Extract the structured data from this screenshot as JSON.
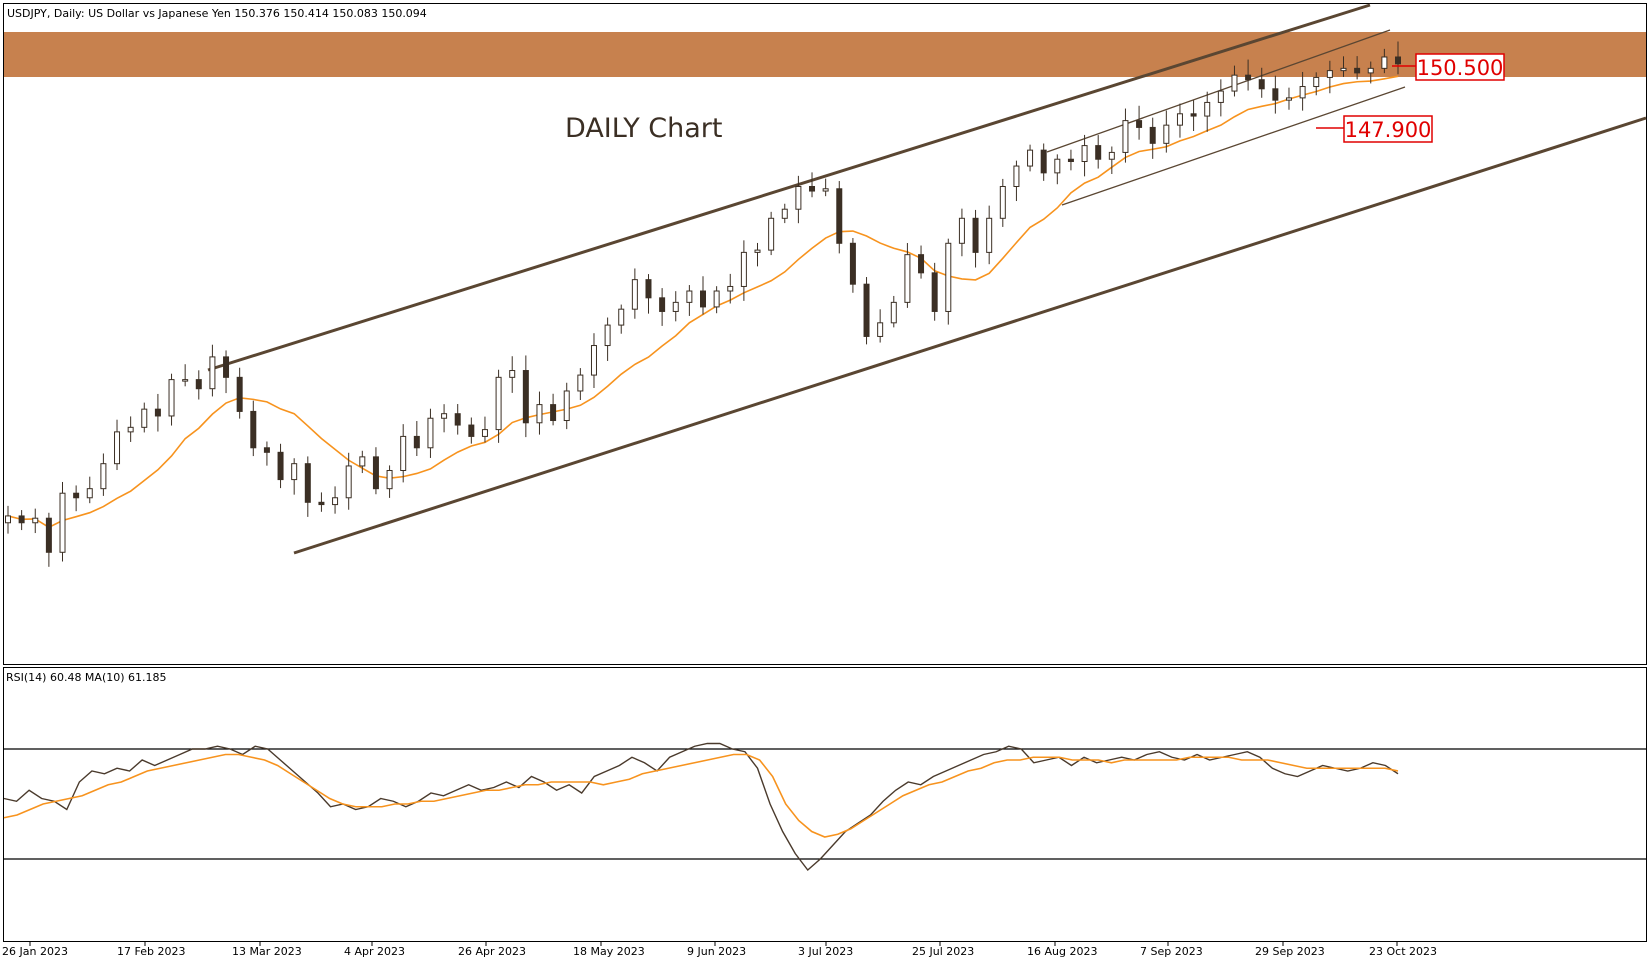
{
  "window": {
    "title": "USDJPY, Daily:  US Dollar vs Japanese Yen  150.376 150.414 150.083 150.094"
  },
  "annotations": {
    "chart_label": "DAILY Chart",
    "resistance_label": "150.500",
    "support_label": "147.900"
  },
  "indicator": {
    "label": "RSI(14) 60.48 MA(10) 61.185"
  },
  "colors": {
    "background": "#ffffff",
    "candle_up": "#ffffff",
    "candle_down": "#3b2f24",
    "candle_outline": "#3b2f24",
    "ma_line": "#f7931e",
    "channel_line": "#5a4632",
    "resistance_zone": "#c47a45",
    "label_red": "#e00000",
    "rsi_line": "#4a3a2c",
    "rsi_ma_line": "#f7931e"
  },
  "chart_data": [
    {
      "type": "candlestick",
      "symbol": "USDJPY",
      "timeframe": "Daily",
      "x_tick_labels": [
        "26 Jan 2023",
        "17 Feb 2023",
        "13 Mar 2023",
        "4 Apr 2023",
        "26 Apr 2023",
        "18 May 2023",
        "9 Jun 2023",
        "3 Jul 2023",
        "25 Jul 2023",
        "16 Aug 2023",
        "7 Sep 2023",
        "29 Sep 2023",
        "23 Oct 2023"
      ],
      "ohlc_close_path": [
        [
          "26 Jan 2023",
          130.2
        ],
        [
          "27 Jan 2023",
          129.9
        ],
        [
          "31 Jan 2023",
          130.1
        ],
        [
          "2 Feb 2023",
          128.6
        ],
        [
          "3 Feb 2023",
          131.2
        ],
        [
          "7 Feb 2023",
          131.0
        ],
        [
          "9 Feb 2023",
          131.4
        ],
        [
          "13 Feb 2023",
          132.5
        ],
        [
          "15 Feb 2023",
          133.9
        ],
        [
          "17 Feb 2023",
          134.1
        ],
        [
          "21 Feb 2023",
          134.9
        ],
        [
          "23 Feb 2023",
          134.6
        ],
        [
          "27 Feb 2023",
          136.2
        ],
        [
          "1 Mar 2023",
          136.2
        ],
        [
          "3 Mar 2023",
          135.8
        ],
        [
          "7 Mar 2023",
          137.2
        ],
        [
          "9 Mar 2023",
          136.3
        ],
        [
          "10 Mar 2023",
          134.8
        ],
        [
          "13 Mar 2023",
          133.2
        ],
        [
          "15 Mar 2023",
          133.0
        ],
        [
          "17 Mar 2023",
          131.8
        ],
        [
          "21 Mar 2023",
          132.5
        ],
        [
          "23 Mar 2023",
          130.8
        ],
        [
          "24 Mar 2023",
          130.7
        ],
        [
          "28 Mar 2023",
          131.0
        ],
        [
          "30 Mar 2023",
          132.4
        ],
        [
          "3 Apr 2023",
          132.8
        ],
        [
          "5 Apr 2023",
          131.4
        ],
        [
          "7 Apr 2023",
          132.2
        ],
        [
          "11 Apr 2023",
          133.7
        ],
        [
          "13 Apr 2023",
          133.2
        ],
        [
          "17 Apr 2023",
          134.5
        ],
        [
          "19 Apr 2023",
          134.7
        ],
        [
          "21 Apr 2023",
          134.2
        ],
        [
          "25 Apr 2023",
          133.7
        ],
        [
          "27 Apr 2023",
          134.0
        ],
        [
          "28 Apr 2023",
          136.3
        ],
        [
          "2 May 2023",
          136.6
        ],
        [
          "4 May 2023",
          134.3
        ],
        [
          "8 May 2023",
          135.1
        ],
        [
          "10 May 2023",
          134.4
        ],
        [
          "12 May 2023",
          135.7
        ],
        [
          "16 May 2023",
          136.4
        ],
        [
          "18 May 2023",
          137.7
        ],
        [
          "22 May 2023",
          138.6
        ],
        [
          "24 May 2023",
          139.3
        ],
        [
          "26 May 2023",
          140.6
        ],
        [
          "30 May 2023",
          139.8
        ],
        [
          "1 Jun 2023",
          139.2
        ],
        [
          "5 Jun 2023",
          139.6
        ],
        [
          "7 Jun 2023",
          140.1
        ],
        [
          "9 Jun 2023",
          139.4
        ],
        [
          "13 Jun 2023",
          140.1
        ],
        [
          "15 Jun 2023",
          140.3
        ],
        [
          "19 Jun 2023",
          141.8
        ],
        [
          "21 Jun 2023",
          141.9
        ],
        [
          "23 Jun 2023",
          143.3
        ],
        [
          "27 Jun 2023",
          143.7
        ],
        [
          "29 Jun 2023",
          144.7
        ],
        [
          "3 Jul 2023",
          144.5
        ],
        [
          "5 Jul 2023",
          144.6
        ],
        [
          "7 Jul 2023",
          142.2
        ],
        [
          "11 Jul 2023",
          140.4
        ],
        [
          "13 Jul 2023",
          138.1
        ],
        [
          "17 Jul 2023",
          138.7
        ],
        [
          "19 Jul 2023",
          139.6
        ],
        [
          "21 Jul 2023",
          141.7
        ],
        [
          "25 Jul 2023",
          140.9
        ],
        [
          "27 Jul 2023",
          139.2
        ],
        [
          "31 Jul 2023",
          142.2
        ],
        [
          "2 Aug 2023",
          143.3
        ],
        [
          "4 Aug 2023",
          141.8
        ],
        [
          "8 Aug 2023",
          143.3
        ],
        [
          "10 Aug 2023",
          144.7
        ],
        [
          "14 Aug 2023",
          145.6
        ],
        [
          "16 Aug 2023",
          146.3
        ],
        [
          "18 Aug 2023",
          145.3
        ],
        [
          "22 Aug 2023",
          145.9
        ],
        [
          "24 Aug 2023",
          145.8
        ],
        [
          "28 Aug 2023",
          146.5
        ],
        [
          "30 Aug 2023",
          145.9
        ],
        [
          "1 Sep 2023",
          146.2
        ],
        [
          "5 Sep 2023",
          147.6
        ],
        [
          "7 Sep 2023",
          147.3
        ],
        [
          "11 Sep 2023",
          146.6
        ],
        [
          "13 Sep 2023",
          147.4
        ],
        [
          "15 Sep 2023",
          147.9
        ],
        [
          "19 Sep 2023",
          147.8
        ],
        [
          "21 Sep 2023",
          148.4
        ],
        [
          "25 Sep 2023",
          148.9
        ],
        [
          "27 Sep 2023",
          149.6
        ],
        [
          "29 Sep 2023",
          149.4
        ],
        [
          "3 Oct 2023",
          149.0
        ],
        [
          "5 Oct 2023",
          148.5
        ],
        [
          "9 Oct 2023",
          148.6
        ],
        [
          "11 Oct 2023",
          149.1
        ],
        [
          "13 Oct 2023",
          149.5
        ],
        [
          "17 Oct 2023",
          149.8
        ],
        [
          "19 Oct 2023",
          149.9
        ],
        [
          "23 Oct 2023",
          149.7
        ],
        [
          "25 Oct 2023",
          149.9
        ],
        [
          "26 Oct 2023",
          150.4
        ],
        [
          "27 Oct 2023",
          150.1
        ]
      ],
      "price_levels": [
        150.5,
        147.9
      ],
      "moving_average": "orange"
    },
    {
      "type": "line",
      "indicator": "RSI(14)",
      "upper_level": 70,
      "lower_level": 30,
      "rsi_values": [
        52,
        51,
        55,
        52,
        51,
        48,
        58,
        62,
        61,
        63,
        62,
        66,
        64,
        66,
        68,
        70,
        70,
        71,
        70,
        68,
        71,
        70,
        66,
        62,
        58,
        54,
        49,
        50,
        48,
        49,
        52,
        51,
        49,
        51,
        54,
        53,
        55,
        57,
        55,
        56,
        58,
        56,
        60,
        58,
        55,
        57,
        54,
        60,
        62,
        64,
        67,
        65,
        62,
        67,
        69,
        71,
        72,
        72,
        70,
        69,
        63,
        50,
        40,
        32,
        26,
        30,
        35,
        40,
        43,
        46,
        51,
        55,
        58,
        57,
        60,
        62,
        64,
        66,
        68,
        69,
        71,
        70,
        65,
        66,
        67,
        64,
        67,
        65,
        66,
        67,
        66,
        68,
        69,
        67,
        66,
        68,
        66,
        67,
        68,
        69,
        67,
        63,
        61,
        60,
        62,
        64,
        63,
        62,
        63,
        65,
        64,
        61
      ],
      "rsi_ma_values": [
        45,
        46,
        48,
        50,
        51,
        52,
        53,
        55,
        57,
        58,
        60,
        62,
        63,
        64,
        65,
        66,
        67,
        68,
        68,
        67,
        66,
        64,
        61,
        58,
        55,
        52,
        50,
        49,
        49,
        49,
        50,
        50,
        51,
        51,
        52,
        53,
        54,
        55,
        55,
        56,
        57,
        57,
        58,
        58,
        58,
        58,
        57,
        58,
        59,
        61,
        62,
        63,
        64,
        65,
        66,
        67,
        68,
        68,
        66,
        60,
        50,
        44,
        40,
        38,
        39,
        41,
        44,
        47,
        50,
        53,
        55,
        57,
        58,
        60,
        62,
        63,
        65,
        66,
        66,
        67,
        67,
        67,
        66,
        66,
        66,
        65,
        66,
        66,
        66,
        66,
        66,
        67,
        67,
        67,
        67,
        66,
        66,
        66,
        65,
        64,
        63,
        63,
        63,
        63,
        63,
        63,
        63,
        62
      ]
    }
  ]
}
